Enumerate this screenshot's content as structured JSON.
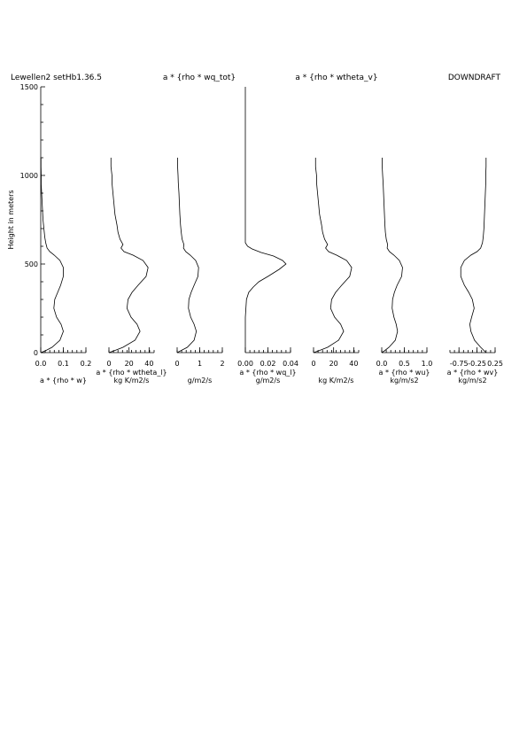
{
  "header": {
    "left": "Lewellen2 setHb1.36.5",
    "center1": "a * {rho * wq_tot}",
    "center2": "a * {rho * wtheta_v}",
    "right": "DOWNDRAFT"
  },
  "chart_data": {
    "type": "line",
    "ylabel": "Height in meters",
    "ylim": [
      0,
      1500
    ],
    "yticks": [
      "0",
      "500",
      "1000",
      "1500"
    ],
    "panels": [
      {
        "xlabel": "a * {rho * w}",
        "xlim": [
          0,
          0.2
        ],
        "ticks": [
          "0.0",
          "0.1",
          "0.2"
        ],
        "tick_values": [
          0,
          0.1,
          0.2
        ],
        "points": [
          [
            0,
            0
          ],
          [
            0.02,
            10
          ],
          [
            0.05,
            30
          ],
          [
            0.085,
            70
          ],
          [
            0.1,
            120
          ],
          [
            0.09,
            160
          ],
          [
            0.07,
            200
          ],
          [
            0.058,
            250
          ],
          [
            0.062,
            300
          ],
          [
            0.075,
            340
          ],
          [
            0.088,
            380
          ],
          [
            0.1,
            430
          ],
          [
            0.1,
            480
          ],
          [
            0.085,
            520
          ],
          [
            0.06,
            550
          ],
          [
            0.04,
            570
          ],
          [
            0.028,
            590
          ],
          [
            0.022,
            620
          ],
          [
            0.018,
            650
          ],
          [
            0.014,
            700
          ],
          [
            0.01,
            750
          ],
          [
            0.008,
            800
          ],
          [
            0.006,
            850
          ],
          [
            0.004,
            900
          ],
          [
            0.002,
            950
          ],
          [
            0.002,
            1000
          ],
          [
            0.001,
            1050
          ],
          [
            0.001,
            1100
          ]
        ]
      },
      {
        "xlabel": "a * {rho * wtheta_l}",
        "unit": "kg K/m2/s",
        "xlim": [
          0,
          45
        ],
        "ticks": [
          "0",
          "20",
          "40"
        ],
        "tick_values": [
          0,
          20,
          40
        ],
        "points": [
          [
            0,
            0
          ],
          [
            5,
            10
          ],
          [
            14,
            30
          ],
          [
            26,
            70
          ],
          [
            31,
            120
          ],
          [
            28,
            160
          ],
          [
            22,
            200
          ],
          [
            18,
            250
          ],
          [
            19,
            300
          ],
          [
            23,
            340
          ],
          [
            29,
            380
          ],
          [
            37,
            430
          ],
          [
            39,
            480
          ],
          [
            34,
            520
          ],
          [
            24,
            550
          ],
          [
            15,
            570
          ],
          [
            12,
            590
          ],
          [
            14,
            610
          ],
          [
            11,
            640
          ],
          [
            9,
            680
          ],
          [
            8,
            720
          ],
          [
            6,
            780
          ],
          [
            5,
            840
          ],
          [
            4,
            900
          ],
          [
            3,
            960
          ],
          [
            3,
            1000
          ],
          [
            2,
            1050
          ],
          [
            2,
            1100
          ]
        ]
      },
      {
        "xlabel": "g/m2/s",
        "xlim": [
          0,
          2
        ],
        "ticks": [
          "0",
          "1",
          "2"
        ],
        "tick_values": [
          0,
          1,
          2
        ],
        "points": [
          [
            0,
            0
          ],
          [
            0.15,
            10
          ],
          [
            0.45,
            30
          ],
          [
            0.75,
            70
          ],
          [
            0.85,
            120
          ],
          [
            0.75,
            160
          ],
          [
            0.6,
            200
          ],
          [
            0.5,
            250
          ],
          [
            0.52,
            300
          ],
          [
            0.62,
            340
          ],
          [
            0.75,
            380
          ],
          [
            0.92,
            430
          ],
          [
            0.95,
            480
          ],
          [
            0.82,
            520
          ],
          [
            0.58,
            550
          ],
          [
            0.38,
            570
          ],
          [
            0.28,
            590
          ],
          [
            0.3,
            610
          ],
          [
            0.22,
            640
          ],
          [
            0.18,
            680
          ],
          [
            0.15,
            720
          ],
          [
            0.12,
            780
          ],
          [
            0.1,
            840
          ],
          [
            0.08,
            900
          ],
          [
            0.05,
            960
          ],
          [
            0.04,
            1000
          ],
          [
            0.02,
            1050
          ],
          [
            0.02,
            1100
          ]
        ]
      },
      {
        "xlabel": "a * {rho * wq_l}",
        "unit": "g/m2/s",
        "xlim": [
          0,
          0.04
        ],
        "ticks": [
          "0.00",
          "0.02",
          "0.04"
        ],
        "tick_values": [
          0,
          0.02,
          0.04
        ],
        "points": [
          [
            0,
            0
          ],
          [
            0,
            200
          ],
          [
            0.001,
            300
          ],
          [
            0.003,
            340
          ],
          [
            0.007,
            370
          ],
          [
            0.012,
            400
          ],
          [
            0.02,
            430
          ],
          [
            0.03,
            470
          ],
          [
            0.036,
            500
          ],
          [
            0.033,
            520
          ],
          [
            0.025,
            545
          ],
          [
            0.014,
            565
          ],
          [
            0.006,
            585
          ],
          [
            0.002,
            600
          ],
          [
            0,
            620
          ],
          [
            0,
            1500
          ]
        ]
      },
      {
        "xlabel": "kg K/m2/s",
        "xlim": [
          0,
          45
        ],
        "ticks": [
          "0",
          "20",
          "40"
        ],
        "tick_values": [
          0,
          20,
          40
        ],
        "points": [
          [
            0,
            0
          ],
          [
            5,
            10
          ],
          [
            14,
            30
          ],
          [
            25,
            70
          ],
          [
            30,
            120
          ],
          [
            27,
            160
          ],
          [
            21,
            200
          ],
          [
            17,
            250
          ],
          [
            18,
            300
          ],
          [
            22,
            340
          ],
          [
            28,
            380
          ],
          [
            36,
            430
          ],
          [
            38,
            480
          ],
          [
            33,
            520
          ],
          [
            23,
            550
          ],
          [
            15,
            570
          ],
          [
            12,
            590
          ],
          [
            14,
            610
          ],
          [
            11,
            640
          ],
          [
            9,
            680
          ],
          [
            8,
            720
          ],
          [
            6,
            780
          ],
          [
            5,
            840
          ],
          [
            4,
            900
          ],
          [
            3,
            960
          ],
          [
            3,
            1000
          ],
          [
            2,
            1050
          ],
          [
            2,
            1100
          ]
        ]
      },
      {
        "xlabel": "a * {rho * wu}",
        "unit": "kg/m/s2",
        "xlim": [
          0,
          1
        ],
        "ticks": [
          "0.0",
          "0.5",
          "1.0"
        ],
        "tick_values": [
          0,
          0.5,
          1
        ],
        "points": [
          [
            0,
            0
          ],
          [
            0.06,
            10
          ],
          [
            0.16,
            30
          ],
          [
            0.3,
            70
          ],
          [
            0.35,
            120
          ],
          [
            0.32,
            160
          ],
          [
            0.27,
            200
          ],
          [
            0.23,
            250
          ],
          [
            0.24,
            300
          ],
          [
            0.28,
            340
          ],
          [
            0.34,
            380
          ],
          [
            0.44,
            430
          ],
          [
            0.46,
            480
          ],
          [
            0.39,
            520
          ],
          [
            0.27,
            550
          ],
          [
            0.17,
            570
          ],
          [
            0.12,
            590
          ],
          [
            0.13,
            610
          ],
          [
            0.1,
            640
          ],
          [
            0.08,
            680
          ],
          [
            0.07,
            720
          ],
          [
            0.06,
            780
          ],
          [
            0.05,
            840
          ],
          [
            0.04,
            900
          ],
          [
            0.03,
            960
          ],
          [
            0.02,
            1000
          ],
          [
            0.01,
            1050
          ],
          [
            0.01,
            1100
          ]
        ]
      },
      {
        "xlabel": "a * {rho * wv}",
        "unit": "kg/m/s2",
        "xlim": [
          -1,
          0.25
        ],
        "ticks": [
          "-0.75",
          "-0.25",
          "0.25"
        ],
        "tick_values": [
          -0.75,
          -0.25,
          0.25
        ],
        "points": [
          [
            0,
            0
          ],
          [
            -0.05,
            10
          ],
          [
            -0.15,
            30
          ],
          [
            -0.32,
            70
          ],
          [
            -0.42,
            120
          ],
          [
            -0.45,
            160
          ],
          [
            -0.4,
            200
          ],
          [
            -0.33,
            250
          ],
          [
            -0.38,
            300
          ],
          [
            -0.48,
            340
          ],
          [
            -0.6,
            380
          ],
          [
            -0.7,
            430
          ],
          [
            -0.7,
            480
          ],
          [
            -0.6,
            520
          ],
          [
            -0.42,
            550
          ],
          [
            -0.25,
            570
          ],
          [
            -0.15,
            590
          ],
          [
            -0.1,
            620
          ],
          [
            -0.08,
            650
          ],
          [
            -0.06,
            700
          ],
          [
            -0.05,
            750
          ],
          [
            -0.04,
            800
          ],
          [
            -0.03,
            850
          ],
          [
            -0.02,
            900
          ],
          [
            -0.01,
            950
          ],
          [
            -0.01,
            1000
          ],
          [
            0,
            1050
          ],
          [
            0,
            1100
          ]
        ]
      }
    ]
  }
}
